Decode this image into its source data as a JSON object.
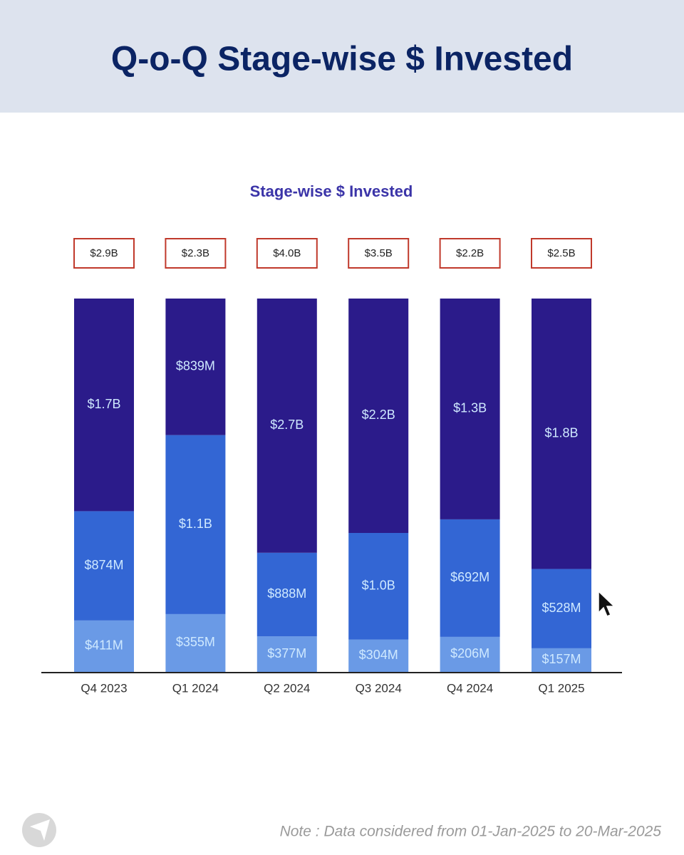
{
  "chart_data": {
    "type": "bar",
    "stack": "percent",
    "title": "Q-o-Q Stage-wise $ Invested",
    "subtitle": "Stage-wise $ Invested",
    "note": "Note : Data considered from 01-Jan-2025 to 20-Mar-2025",
    "categories": [
      "Q4 2023",
      "Q1 2024",
      "Q2 2024",
      "Q3 2024",
      "Q4 2024",
      "Q1 2025"
    ],
    "totals": [
      2900,
      2300,
      4000,
      3500,
      2200,
      2500
    ],
    "total_labels": [
      "$2.9B",
      "$2.3B",
      "$4.0B",
      "$3.5B",
      "$2.2B",
      "$2.5B"
    ],
    "series": [
      {
        "color": "#6a9ae6",
        "values": [
          411,
          355,
          377,
          304,
          206,
          157
        ],
        "value_labels": [
          "$411M",
          "$355M",
          "$377M",
          "$304M",
          "$206M",
          "$157M"
        ]
      },
      {
        "color": "#3366d4",
        "values": [
          874,
          1100,
          888,
          1000,
          692,
          528
        ],
        "value_labels": [
          "$874M",
          "$1.1B",
          "$888M",
          "$1.0B",
          "$692M",
          "$528M"
        ]
      },
      {
        "color": "#2b1b8a",
        "values": [
          1700,
          839,
          2700,
          2200,
          1300,
          1800
        ],
        "value_labels": [
          "$1.7B",
          "$839M",
          "$2.7B",
          "$2.2B",
          "$1.3B",
          "$1.8B"
        ]
      }
    ]
  }
}
